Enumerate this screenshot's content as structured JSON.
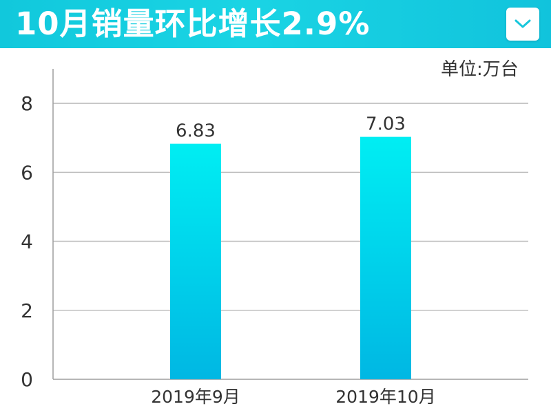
{
  "header": {
    "title": "10月销量环比增长2.9%",
    "background_color": "#17cde1",
    "dropdown_icon": "chevron-down-icon"
  },
  "unit_label": "单位:万台",
  "chart_data": {
    "type": "bar",
    "title": "10月销量环比增长2.9%",
    "unit": "单位:万台",
    "categories": [
      "2019年9月",
      "2019年10月"
    ],
    "values": [
      6.83,
      7.03
    ],
    "data_labels": [
      "6.83",
      "7.03"
    ],
    "ylim": [
      0,
      9
    ],
    "yticks": [
      0,
      2,
      4,
      6,
      8
    ],
    "ytick_labels": [
      "0",
      "2",
      "4",
      "6",
      "8"
    ],
    "grid": true,
    "legend": "none",
    "colors": {
      "bar_top": "#00eef3",
      "bar_bottom": "#00b7e3",
      "grid": "#bdbdbd",
      "axis": "#9e9e9e"
    }
  }
}
